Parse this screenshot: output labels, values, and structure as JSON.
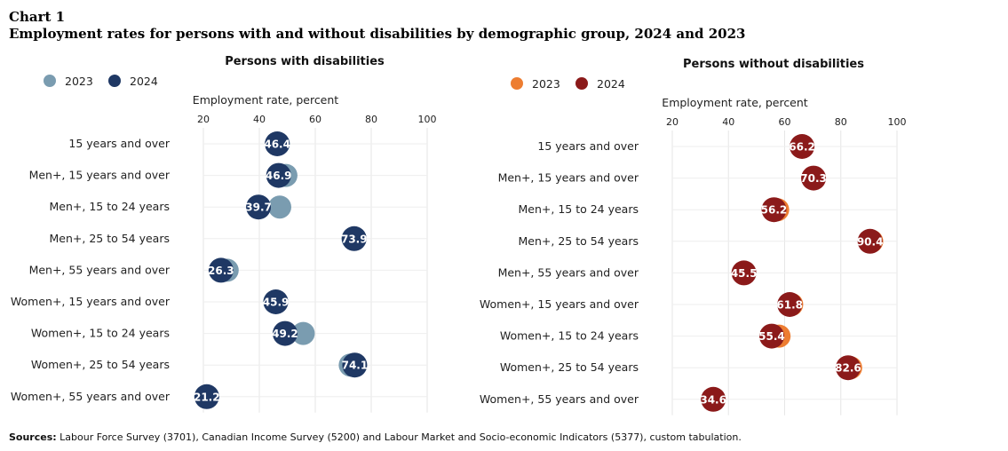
{
  "header": {
    "label": "Chart 1",
    "title": "Employment rates for persons with and without disabilities  by demographic group, 2024 and 2023"
  },
  "chart_data": [
    {
      "type": "scatter",
      "title": "Persons with disabilities",
      "xlabel": "Employment rate, percent",
      "xticks": [
        "20",
        "40",
        "60",
        "80",
        "100"
      ],
      "xlim": [
        20,
        100
      ],
      "legend": [
        {
          "name": "2023",
          "color": "#7a9cb0"
        },
        {
          "name": "2024",
          "color": "#1f3864"
        }
      ],
      "categories": [
        "15 years and over",
        "Men+, 15 years and over",
        "Men+, 15 to 24 years",
        "Men+, 25 to 54 years",
        "Men+, 55 years and over",
        "Women+, 15 years and over",
        "Women+, 15 to 24 years",
        "Women+, 25 to 54 years",
        "Women+, 55 years and over"
      ],
      "series": [
        {
          "name": "2023",
          "values": [
            46.8,
            49.5,
            47.3,
            73.5,
            28.5,
            45.5,
            55.7,
            72.5,
            21.5
          ]
        },
        {
          "name": "2024",
          "values": [
            46.4,
            46.9,
            39.7,
            73.9,
            26.3,
            45.9,
            49.2,
            74.1,
            21.2
          ]
        }
      ],
      "labels": [
        "46.4",
        "46.9",
        "39.7",
        "73.9",
        "26.3",
        "45.9",
        "49.2",
        "74.1",
        "21.2"
      ]
    },
    {
      "type": "scatter",
      "title": "Persons without disabilities",
      "xlabel": "Employment rate, percent",
      "xticks": [
        "20",
        "40",
        "60",
        "80",
        "100"
      ],
      "xlim": [
        20,
        100
      ],
      "legend": [
        {
          "name": "2023",
          "color": "#ed7d31"
        },
        {
          "name": "2024",
          "color": "#8b1a1a"
        }
      ],
      "categories": [
        "15 years and over",
        "Men+, 15 years and over",
        "Men+, 15 to 24 years",
        "Men+, 25 to 54 years",
        "Men+, 55 years and over",
        "Women+, 15 years and over",
        "Women+, 15 to 24 years",
        "Women+, 25 to 54 years",
        "Women+, 55 years and over"
      ],
      "series": [
        {
          "name": "2023",
          "values": [
            66.0,
            70.2,
            57.5,
            91.0,
            45.3,
            62.5,
            58.0,
            83.5,
            34.5
          ]
        },
        {
          "name": "2024",
          "values": [
            66.2,
            70.3,
            56.2,
            90.4,
            45.5,
            61.8,
            55.4,
            82.6,
            34.6
          ]
        }
      ],
      "labels": [
        "66.2",
        "70.3",
        "56.2",
        "90.4",
        "45.5",
        "61.8",
        "55.4",
        "82.6",
        "34.6"
      ]
    }
  ],
  "footer": {
    "sources_label": "Sources:",
    "sources_text": " Labour Force Survey (3701), Canadian Income Survey (5200) and Labour Market and Socio-economic Indicators (5377), custom tabulation."
  }
}
